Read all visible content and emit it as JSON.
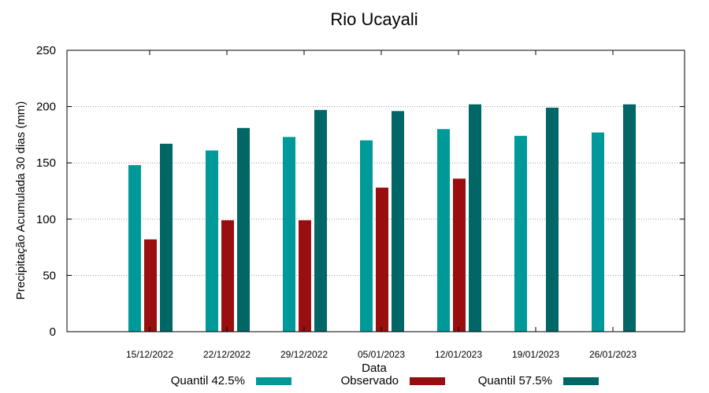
{
  "chart_data": {
    "type": "bar",
    "title": "Rio Ucayali",
    "xlabel": "Data",
    "ylabel": "Precipitação Acumulada 30 dias (mm)",
    "ylim": [
      0,
      250
    ],
    "yticks": [
      0,
      50,
      100,
      150,
      200,
      250
    ],
    "grid": true,
    "legend_position": "bottom",
    "categories": [
      "15/12/2022",
      "22/12/2022",
      "29/12/2022",
      "05/01/2023",
      "12/01/2023",
      "19/01/2023",
      "26/01/2023"
    ],
    "series": [
      {
        "name": "Quantil 42.5%",
        "color": "#009999",
        "values": [
          148,
          161,
          173,
          170,
          180,
          174,
          177
        ]
      },
      {
        "name": "Observado",
        "color": "#990F0F",
        "values": [
          82,
          99,
          99,
          128,
          136,
          null,
          null
        ]
      },
      {
        "name": "Quantil 57.5%",
        "color": "#006666",
        "values": [
          167,
          181,
          197,
          196,
          202,
          199,
          202
        ]
      }
    ]
  }
}
